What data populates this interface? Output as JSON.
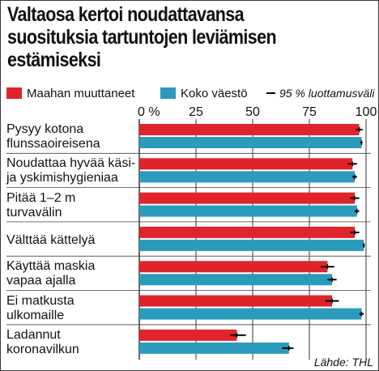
{
  "title_lines": [
    "Valtaosa kertoi noudattavansa",
    "suosituksia tartuntojen leviämisen",
    "estämiseksi"
  ],
  "legend": {
    "series_a": "Maahan muuttaneet",
    "series_b": "Koko väestö",
    "ci": "95 % luottamusväli"
  },
  "source": "Lähde: THL",
  "colors": {
    "series_a": "#e0242b",
    "series_b": "#2b9bbb",
    "ci": "#000000",
    "grid": "#000000",
    "divider": "#444444"
  },
  "chart_data": {
    "type": "bar",
    "orientation": "horizontal",
    "xlim": [
      0,
      100
    ],
    "x_ticks": [
      {
        "value": 0,
        "label": "0 %"
      },
      {
        "value": 25,
        "label": "25"
      },
      {
        "value": 50,
        "label": "50"
      },
      {
        "value": 75,
        "label": "75"
      },
      {
        "value": 100,
        "label": "100"
      }
    ],
    "grid": true,
    "legend_position": "top",
    "categories": [
      [
        "Pysyy kotona",
        "flunssaoireisena"
      ],
      [
        "Noudattaa hyvää käsi-",
        "ja yskimishygieniaa"
      ],
      [
        "Pitää 1–2 m",
        "turvavälin"
      ],
      [
        "Välttää kättelyä"
      ],
      [
        "Käyttää maskia",
        "vapaa ajalla"
      ],
      [
        "Ei matkusta",
        "ulkomaille"
      ],
      [
        "Ladannut",
        "koronavilkun"
      ]
    ],
    "series": [
      {
        "name": "Maahan muuttaneet",
        "values": [
          97,
          94,
          95,
          95,
          83,
          85,
          43
        ],
        "ci": [
          [
            95.5,
            98.5
          ],
          [
            92,
            96
          ],
          [
            93,
            97
          ],
          [
            93,
            97
          ],
          [
            80,
            86
          ],
          [
            82,
            88
          ],
          [
            40,
            47
          ]
        ]
      },
      {
        "name": "Koko väestö",
        "values": [
          98,
          95,
          96,
          99,
          85,
          98,
          66
        ],
        "ci": [
          [
            97.5,
            98.5
          ],
          [
            94,
            96
          ],
          [
            95,
            97
          ],
          [
            98.5,
            99.5
          ],
          [
            83,
            87
          ],
          [
            97,
            99
          ],
          [
            63,
            68
          ]
        ]
      }
    ]
  }
}
